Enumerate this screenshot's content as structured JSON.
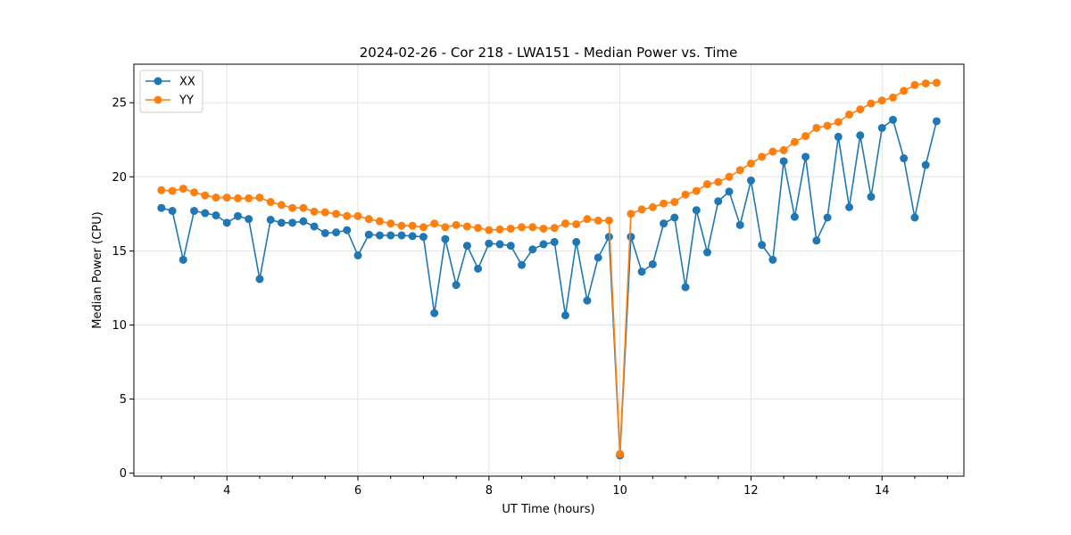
{
  "chart_data": {
    "type": "line",
    "title": "2024-02-26 - Cor 218 - LWA151 - Median Power vs. Time",
    "xlabel": "UT Time (hours)",
    "ylabel": "Median Power (CPU)",
    "xlim": [
      2.58,
      15.25
    ],
    "ylim": [
      -0.2,
      27.6
    ],
    "xticks": [
      4,
      6,
      8,
      10,
      12,
      14
    ],
    "yticks": [
      0,
      5,
      10,
      15,
      20,
      25
    ],
    "grid": true,
    "legend_position": "top-left",
    "x": [
      3.0,
      3.167,
      3.333,
      3.5,
      3.667,
      3.833,
      4.0,
      4.167,
      4.333,
      4.5,
      4.667,
      4.833,
      5.0,
      5.167,
      5.333,
      5.5,
      5.667,
      5.833,
      6.0,
      6.167,
      6.333,
      6.5,
      6.667,
      6.833,
      7.0,
      7.167,
      7.333,
      7.5,
      7.667,
      7.833,
      8.0,
      8.167,
      8.333,
      8.5,
      8.667,
      8.833,
      9.0,
      9.167,
      9.333,
      9.5,
      9.667,
      9.833,
      10.0,
      10.167,
      10.333,
      10.5,
      10.667,
      10.833,
      11.0,
      11.167,
      11.333,
      11.5,
      11.667,
      11.833,
      12.0,
      12.167,
      12.333,
      12.5,
      12.667,
      12.833,
      13.0,
      13.167,
      13.333,
      13.5,
      13.667,
      13.833,
      14.0,
      14.167,
      14.333,
      14.5,
      14.667,
      14.833
    ],
    "series": [
      {
        "name": "XX",
        "color": "#1f77b4",
        "values": [
          17.9,
          17.7,
          14.4,
          17.7,
          17.55,
          17.4,
          16.9,
          17.35,
          17.15,
          13.1,
          17.1,
          16.9,
          16.9,
          17.0,
          16.65,
          16.2,
          16.25,
          16.4,
          14.7,
          16.1,
          16.05,
          16.05,
          16.05,
          16.0,
          15.95,
          10.8,
          15.8,
          12.7,
          15.35,
          13.8,
          15.5,
          15.45,
          15.35,
          14.05,
          15.1,
          15.45,
          15.6,
          10.65,
          15.6,
          11.65,
          14.55,
          15.95,
          1.2,
          15.95,
          13.6,
          14.1,
          16.85,
          17.25,
          12.55,
          17.75,
          14.9,
          18.35,
          19.0,
          16.75,
          19.75,
          15.4,
          14.4,
          21.05,
          17.3,
          21.35,
          15.7,
          17.25,
          22.7,
          17.95,
          22.8,
          18.65,
          23.3,
          23.85,
          21.25,
          17.25,
          20.8,
          23.75
        ]
      },
      {
        "name": "YY",
        "color": "#ff7f0e",
        "values": [
          19.1,
          19.05,
          19.2,
          18.95,
          18.75,
          18.6,
          18.6,
          18.55,
          18.55,
          18.6,
          18.3,
          18.1,
          17.9,
          17.9,
          17.65,
          17.6,
          17.5,
          17.35,
          17.35,
          17.15,
          17.0,
          16.85,
          16.7,
          16.7,
          16.6,
          16.85,
          16.6,
          16.75,
          16.65,
          16.55,
          16.4,
          16.45,
          16.5,
          16.6,
          16.6,
          16.5,
          16.55,
          16.85,
          16.8,
          17.15,
          17.05,
          17.05,
          1.3,
          17.5,
          17.8,
          17.95,
          18.2,
          18.3,
          18.8,
          19.05,
          19.5,
          19.65,
          20.0,
          20.45,
          20.9,
          21.35,
          21.7,
          21.8,
          22.35,
          22.75,
          23.3,
          23.45,
          23.7,
          24.2,
          24.55,
          24.95,
          25.15,
          25.35,
          25.8,
          26.2,
          26.3,
          26.35
        ]
      }
    ]
  }
}
